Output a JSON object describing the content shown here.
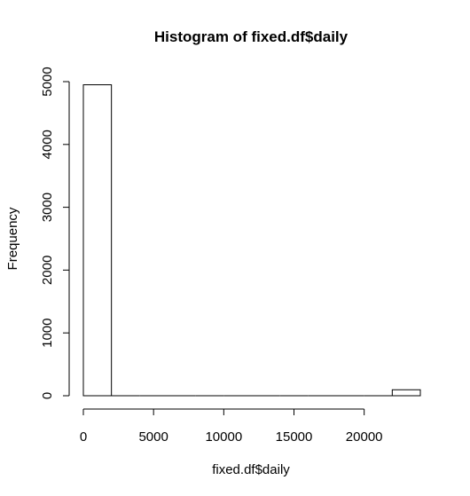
{
  "chart_data": {
    "type": "bar",
    "title": "Histogram of fixed.df$daily",
    "xlabel": "fixed.df$daily",
    "ylabel": "Frequency",
    "bin_width": 2000,
    "bins": [
      {
        "start": 0,
        "end": 2000,
        "count": 4950
      },
      {
        "start": 2000,
        "end": 4000,
        "count": 0
      },
      {
        "start": 4000,
        "end": 6000,
        "count": 0
      },
      {
        "start": 6000,
        "end": 8000,
        "count": 0
      },
      {
        "start": 8000,
        "end": 10000,
        "count": 0
      },
      {
        "start": 10000,
        "end": 12000,
        "count": 0
      },
      {
        "start": 12000,
        "end": 14000,
        "count": 0
      },
      {
        "start": 14000,
        "end": 16000,
        "count": 0
      },
      {
        "start": 16000,
        "end": 18000,
        "count": 0
      },
      {
        "start": 18000,
        "end": 20000,
        "count": 0
      },
      {
        "start": 20000,
        "end": 22000,
        "count": 0
      },
      {
        "start": 22000,
        "end": 24000,
        "count": 95
      }
    ],
    "x_ticks": [
      0,
      5000,
      10000,
      15000,
      20000
    ],
    "y_ticks": [
      0,
      1000,
      2000,
      3000,
      4000,
      5000
    ],
    "xlim": [
      0,
      24000
    ],
    "ylim": [
      0,
      5000
    ],
    "grid": false,
    "legend": "none"
  }
}
